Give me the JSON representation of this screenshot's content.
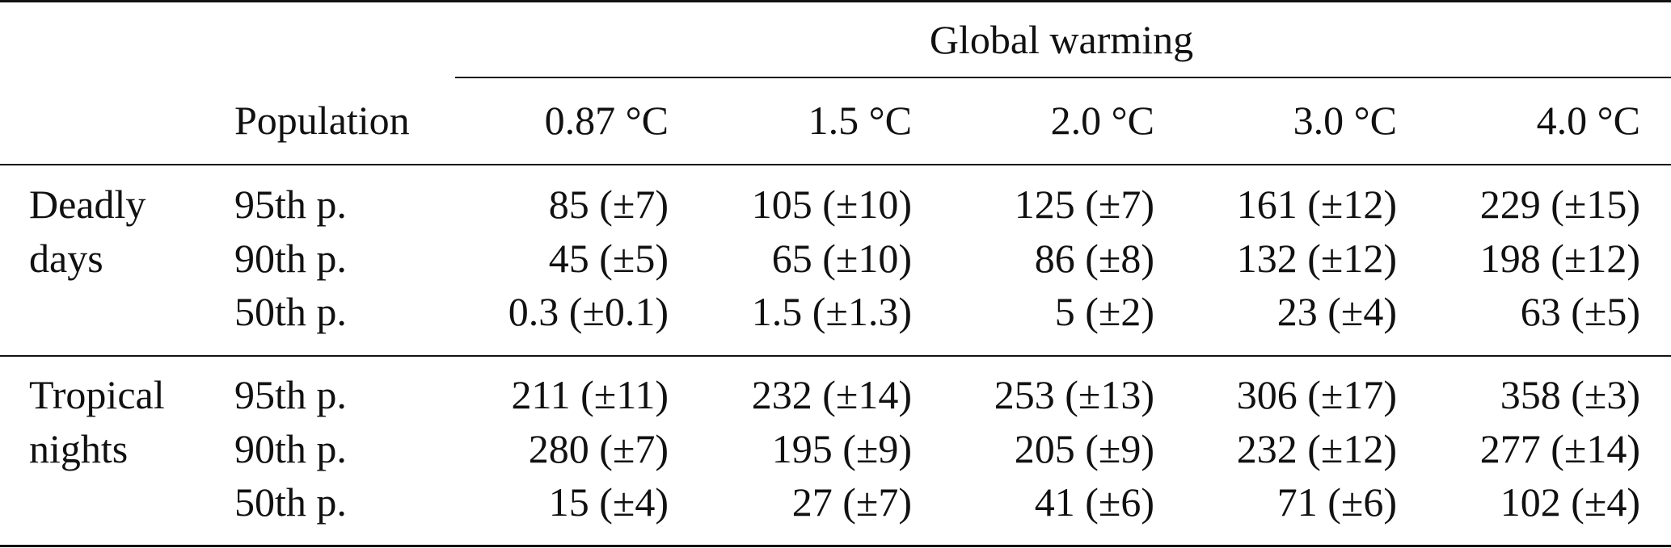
{
  "table": {
    "spanner": "Global warming",
    "header": {
      "population": "Population",
      "levels": [
        "0.87 °C",
        "1.5 °C",
        "2.0 °C",
        "3.0 °C",
        "4.0 °C"
      ]
    },
    "groups": [
      {
        "label_line1": "Deadly",
        "label_line2": "days",
        "rows": [
          {
            "population": "95th p.",
            "values": [
              "85 (±7)",
              "105 (±10)",
              "125 (±7)",
              "161 (±12)",
              "229 (±15)"
            ]
          },
          {
            "population": "90th p.",
            "values": [
              "45 (±5)",
              "65 (±10)",
              "86 (±8)",
              "132 (±12)",
              "198 (±12)"
            ]
          },
          {
            "population": "50th p.",
            "values": [
              "0.3 (±0.1)",
              "1.5 (±1.3)",
              "5 (±2)",
              "23 (±4)",
              "63 (±5)"
            ]
          }
        ]
      },
      {
        "label_line1": "Tropical",
        "label_line2": "nights",
        "rows": [
          {
            "population": "95th p.",
            "values": [
              "211 (±11)",
              "232 (±14)",
              "253 (±13)",
              "306 (±17)",
              "358 (±3)"
            ]
          },
          {
            "population": "90th p.",
            "values": [
              "280 (±7)",
              "195 (±9)",
              "205 (±9)",
              "232 (±12)",
              "277 (±14)"
            ]
          },
          {
            "population": "50th p.",
            "values": [
              "15 (±4)",
              "27 (±7)",
              "41 (±6)",
              "71 (±6)",
              "102 (±4)"
            ]
          }
        ]
      }
    ]
  }
}
